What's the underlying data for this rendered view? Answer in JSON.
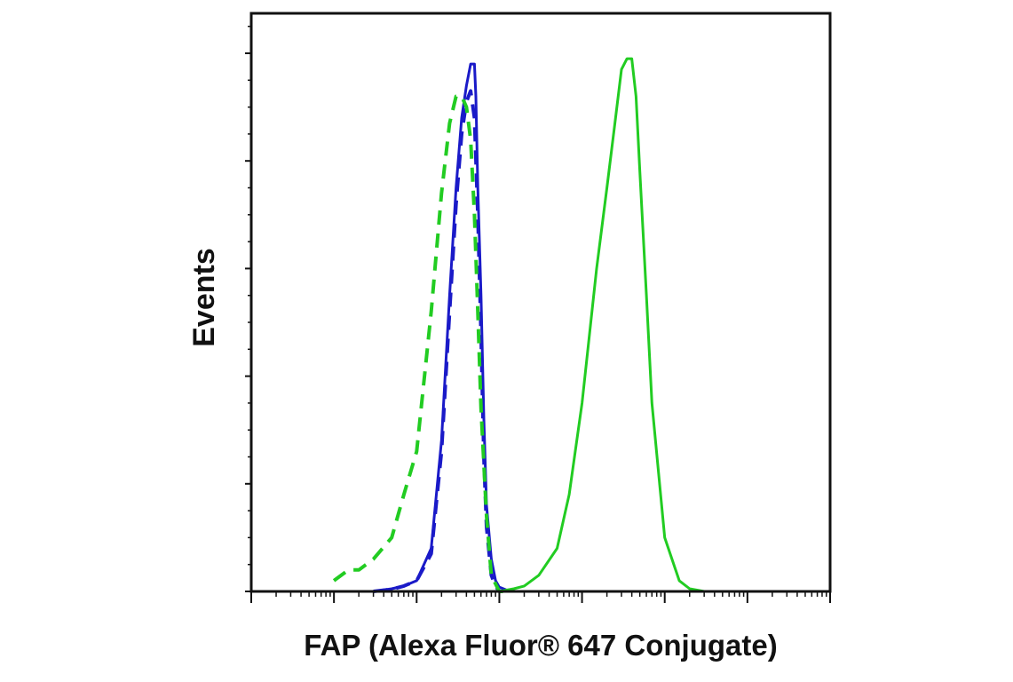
{
  "chart_data": {
    "type": "line",
    "title": "",
    "xlabel": "FAP (Alexa Fluor® 647 Conjugate)",
    "ylabel": "Events",
    "x_scale": "log",
    "xlim": [
      1,
      10000000
    ],
    "ylim": [
      0,
      100
    ],
    "y_ticks": [
      0,
      20,
      40,
      60,
      80,
      100
    ],
    "y_tick_labels_shown": false,
    "x_tick_labels_shown": false,
    "grid": false,
    "legend": "none",
    "series": [
      {
        "color": "#1a1ac8",
        "style": "solid",
        "x": [
          30,
          50,
          70,
          100,
          150,
          200,
          250,
          300,
          350,
          400,
          450,
          500,
          520,
          550,
          600,
          650,
          700,
          800,
          900,
          1000,
          1200,
          1500,
          2000,
          1000000
        ],
        "y": [
          0,
          0.5,
          1,
          2,
          8,
          28,
          55,
          75,
          88,
          94,
          98,
          98,
          92,
          75,
          55,
          32,
          16,
          6,
          2,
          0.8,
          0.3,
          0,
          0,
          0
        ]
      },
      {
        "color": "#1a1ac8",
        "style": "dashed",
        "x": [
          30,
          50,
          70,
          100,
          150,
          200,
          250,
          300,
          350,
          400,
          450,
          500,
          550,
          600,
          650,
          700,
          800,
          900,
          1000
        ],
        "y": [
          0,
          0.4,
          1,
          2,
          7,
          26,
          52,
          72,
          85,
          91,
          93,
          88,
          70,
          48,
          25,
          12,
          3,
          1,
          0
        ]
      },
      {
        "color": "#22cc22",
        "style": "dashed",
        "x": [
          10,
          15,
          20,
          30,
          50,
          70,
          100,
          150,
          200,
          250,
          300,
          350,
          400,
          450,
          500,
          550,
          600,
          700,
          800,
          1000,
          1200
        ],
        "y": [
          2,
          4,
          4,
          6,
          10,
          18,
          26,
          52,
          74,
          87,
          92,
          92,
          90,
          84,
          70,
          52,
          34,
          14,
          3,
          0,
          0
        ]
      },
      {
        "color": "#22cc22",
        "style": "solid",
        "x": [
          1,
          1000,
          1500,
          2000,
          3000,
          5000,
          7000,
          10000,
          15000,
          20000,
          25000,
          30000,
          35000,
          40000,
          45000,
          50000,
          60000,
          70000,
          100000,
          150000,
          200000,
          300000,
          1000000,
          10000000
        ],
        "y": [
          0,
          0,
          0.5,
          1,
          3,
          8,
          18,
          35,
          60,
          75,
          87,
          97,
          99,
          99,
          92,
          78,
          55,
          35,
          10,
          2,
          0.5,
          0,
          0,
          0
        ]
      }
    ]
  }
}
